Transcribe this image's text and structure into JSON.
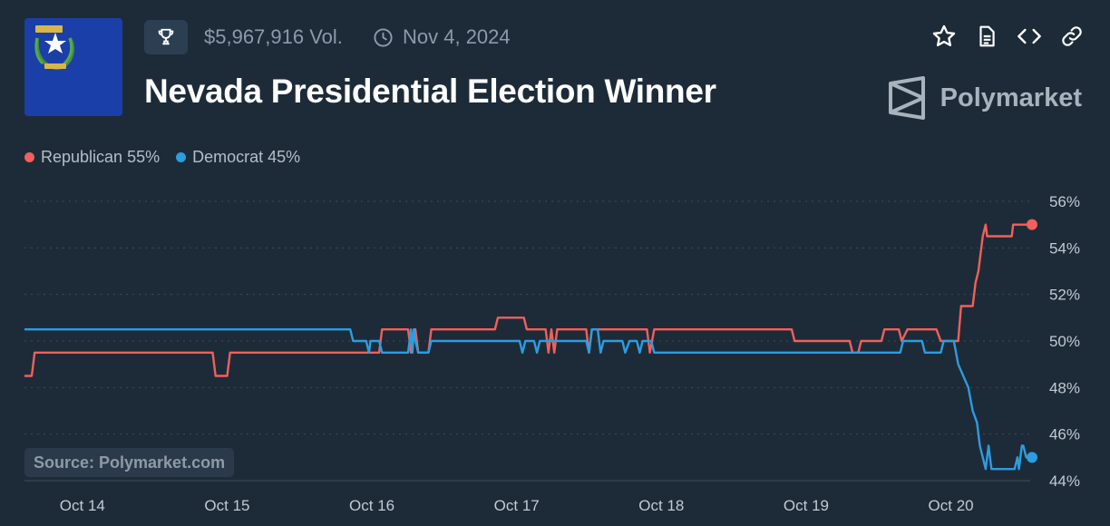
{
  "header": {
    "volume": "$5,967,916 Vol.",
    "date": "Nov 4, 2024",
    "title": "Nevada Presidential Election Winner",
    "brand": "Polymarket"
  },
  "icons": {
    "trophy": "trophy-icon",
    "clock": "clock-icon",
    "star": "star-icon",
    "document": "document-icon",
    "embed": "code-icon",
    "link": "link-icon"
  },
  "colors": {
    "background": "#1d2b39",
    "republican": "#f1605a",
    "democrat": "#2c9de0",
    "flag": "#1b3fa8"
  },
  "legend": {
    "republican": "Republican 55%",
    "democrat": "Democrat 45%"
  },
  "source": "Source: Polymarket.com",
  "chart_data": {
    "type": "line",
    "xlabel": "",
    "ylabel": "",
    "x_ticks": [
      "Oct 14",
      "Oct 15",
      "Oct 16",
      "Oct 17",
      "Oct 18",
      "Oct 19",
      "Oct 20"
    ],
    "y_ticks": [
      "56%",
      "54%",
      "52%",
      "50%",
      "48%",
      "46%",
      "44%"
    ],
    "xlim": [
      13.6,
      20.56
    ],
    "ylim": [
      44,
      56
    ],
    "grid": true,
    "legend_position": "top-left",
    "series": [
      {
        "name": "Republican",
        "color": "#f1605a",
        "points": [
          [
            13.6,
            48.5
          ],
          [
            13.65,
            48.5
          ],
          [
            13.67,
            49.5
          ],
          [
            14.9,
            49.5
          ],
          [
            14.92,
            48.5
          ],
          [
            15.0,
            48.5
          ],
          [
            15.02,
            49.5
          ],
          [
            15.97,
            49.5
          ],
          [
            16.05,
            49.5
          ],
          [
            16.07,
            50.5
          ],
          [
            16.25,
            50.5
          ],
          [
            16.27,
            49.5
          ],
          [
            16.29,
            50.5
          ],
          [
            16.3,
            50.5
          ],
          [
            16.32,
            49.5
          ],
          [
            16.39,
            49.5
          ],
          [
            16.41,
            50.5
          ],
          [
            16.85,
            50.5
          ],
          [
            16.87,
            51.0
          ],
          [
            17.05,
            51.0
          ],
          [
            17.07,
            50.5
          ],
          [
            17.2,
            50.5
          ],
          [
            17.22,
            49.5
          ],
          [
            17.24,
            50.5
          ],
          [
            17.26,
            49.5
          ],
          [
            17.28,
            50.5
          ],
          [
            17.48,
            50.5
          ],
          [
            17.5,
            49.5
          ],
          [
            17.52,
            50.5
          ],
          [
            17.9,
            50.5
          ],
          [
            17.92,
            49.5
          ],
          [
            17.95,
            50.5
          ],
          [
            18.9,
            50.5
          ],
          [
            18.92,
            50.0
          ],
          [
            19.3,
            50.0
          ],
          [
            19.32,
            49.5
          ],
          [
            19.36,
            49.5
          ],
          [
            19.38,
            50.0
          ],
          [
            19.52,
            50.0
          ],
          [
            19.54,
            50.5
          ],
          [
            19.64,
            50.5
          ],
          [
            19.66,
            50.0
          ],
          [
            19.7,
            50.5
          ],
          [
            19.9,
            50.5
          ],
          [
            19.93,
            50.0
          ],
          [
            20.05,
            50.0
          ],
          [
            20.07,
            51.5
          ],
          [
            20.15,
            51.5
          ],
          [
            20.17,
            52.5
          ],
          [
            20.19,
            53.0
          ],
          [
            20.22,
            54.5
          ],
          [
            20.24,
            55.0
          ],
          [
            20.25,
            54.5
          ],
          [
            20.42,
            54.5
          ],
          [
            20.43,
            55.0
          ],
          [
            20.56,
            55.0
          ]
        ]
      },
      {
        "name": "Democrat",
        "color": "#2c9de0",
        "points": [
          [
            13.6,
            50.5
          ],
          [
            15.85,
            50.5
          ],
          [
            15.87,
            50.0
          ],
          [
            15.96,
            50.0
          ],
          [
            15.98,
            49.5
          ],
          [
            15.99,
            50.0
          ],
          [
            16.05,
            50.0
          ],
          [
            16.07,
            49.5
          ],
          [
            16.25,
            49.5
          ],
          [
            16.27,
            50.5
          ],
          [
            16.28,
            49.5
          ],
          [
            16.29,
            50.5
          ],
          [
            16.3,
            50.0
          ],
          [
            16.32,
            49.5
          ],
          [
            16.39,
            49.5
          ],
          [
            16.41,
            50.0
          ],
          [
            16.8,
            50.0
          ],
          [
            17.02,
            50.0
          ],
          [
            17.04,
            49.5
          ],
          [
            17.06,
            50.0
          ],
          [
            17.12,
            50.0
          ],
          [
            17.14,
            49.5
          ],
          [
            17.16,
            50.0
          ],
          [
            17.48,
            50.0
          ],
          [
            17.5,
            49.5
          ],
          [
            17.52,
            50.5
          ],
          [
            17.56,
            50.5
          ],
          [
            17.58,
            49.5
          ],
          [
            17.6,
            50.0
          ],
          [
            17.73,
            50.0
          ],
          [
            17.75,
            49.5
          ],
          [
            17.78,
            50.0
          ],
          [
            17.83,
            50.0
          ],
          [
            17.85,
            49.5
          ],
          [
            17.87,
            50.0
          ],
          [
            17.93,
            50.0
          ],
          [
            17.95,
            49.5
          ],
          [
            19.65,
            49.5
          ],
          [
            19.67,
            50.0
          ],
          [
            19.8,
            50.0
          ],
          [
            19.82,
            49.5
          ],
          [
            19.93,
            49.5
          ],
          [
            19.95,
            50.0
          ],
          [
            20.02,
            50.0
          ],
          [
            20.05,
            49.0
          ],
          [
            20.12,
            48.0
          ],
          [
            20.15,
            47.0
          ],
          [
            20.18,
            46.5
          ],
          [
            20.2,
            45.5
          ],
          [
            20.22,
            45.0
          ],
          [
            20.24,
            44.5
          ],
          [
            20.26,
            45.5
          ],
          [
            20.28,
            44.5
          ],
          [
            20.44,
            44.5
          ],
          [
            20.46,
            45.0
          ],
          [
            20.47,
            44.5
          ],
          [
            20.49,
            45.5
          ],
          [
            20.5,
            45.5
          ],
          [
            20.52,
            45.0
          ],
          [
            20.56,
            45.0
          ]
        ]
      }
    ]
  }
}
